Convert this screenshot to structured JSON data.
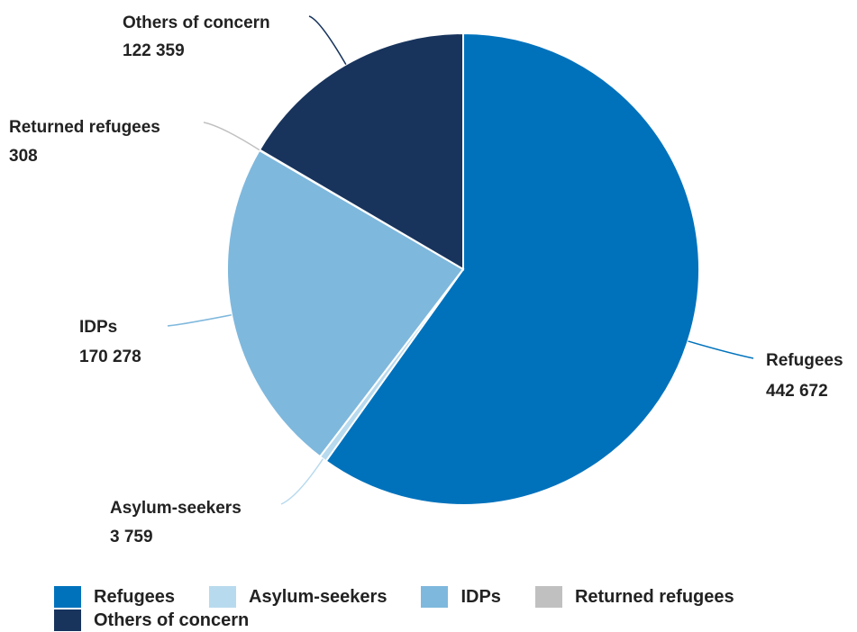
{
  "chart_data": {
    "type": "pie",
    "title": "",
    "start_angle": "12 o'clock",
    "direction": "clockwise",
    "legend_position": "bottom",
    "slices": [
      {
        "name": "Refugees",
        "value": 442672,
        "value_label": "442 672",
        "color": "#0072BC"
      },
      {
        "name": "Asylum-seekers",
        "value": 3759,
        "value_label": "3 759",
        "color": "#B8DAEE"
      },
      {
        "name": "IDPs",
        "value": 170278,
        "value_label": "170 278",
        "color": "#7FB8DD"
      },
      {
        "name": "Returned refugees",
        "value": 308,
        "value_label": "308",
        "color": "#C0C0C0"
      },
      {
        "name": "Others of concern",
        "value": 122359,
        "value_label": "122 359",
        "color": "#18345D"
      }
    ]
  }
}
